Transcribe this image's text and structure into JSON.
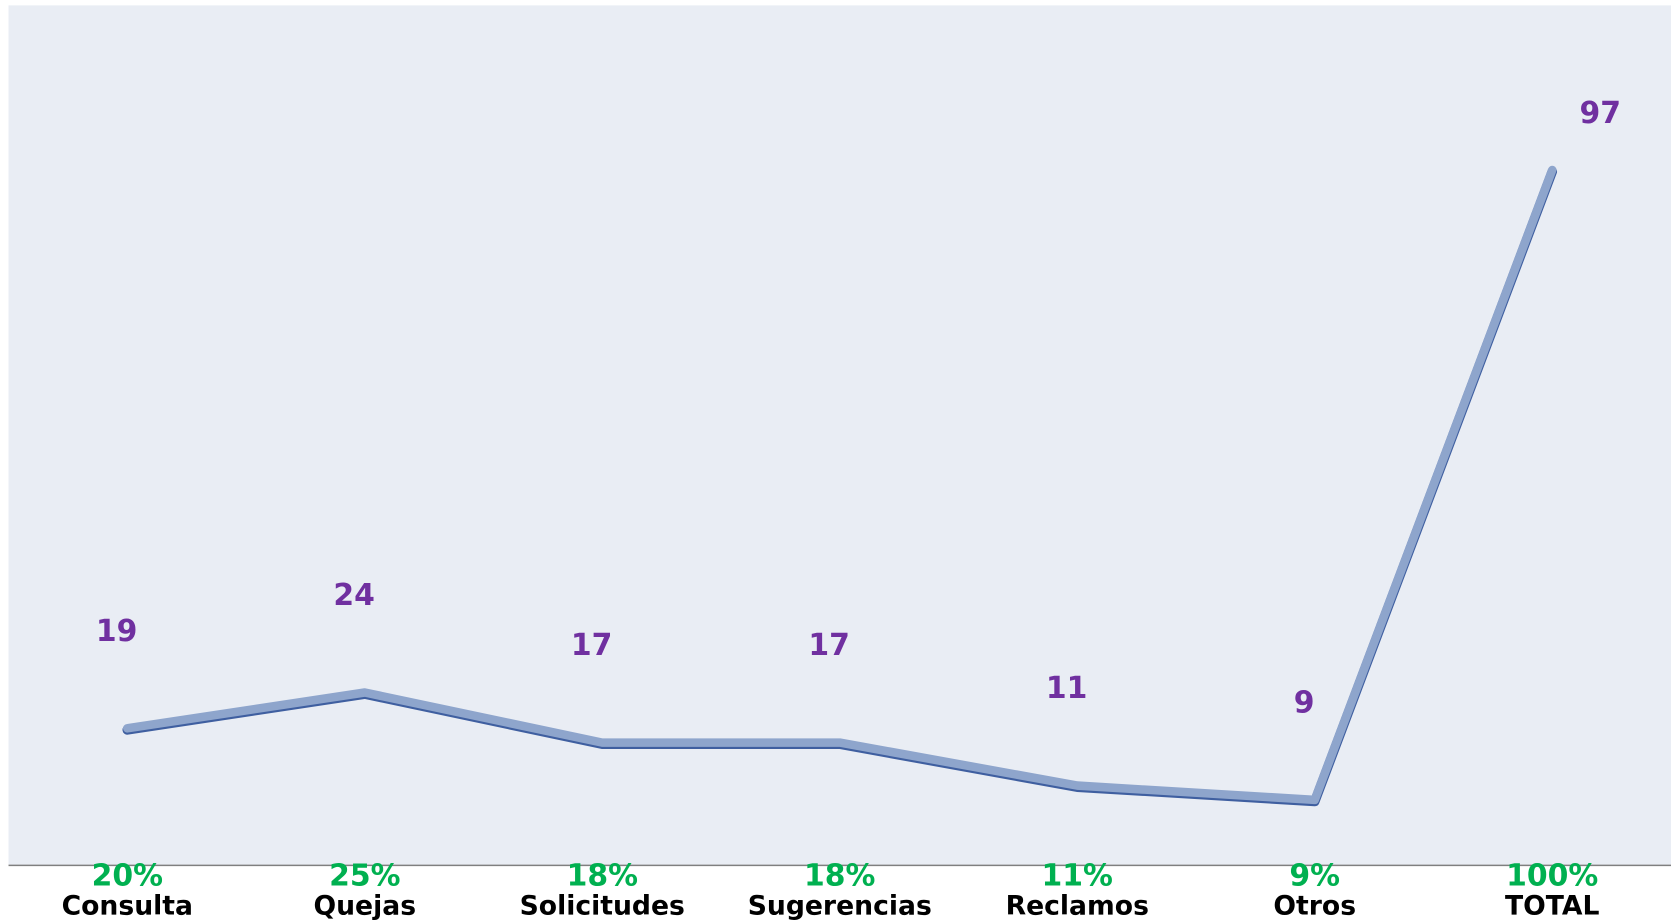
{
  "chart_data": {
    "type": "line",
    "categories": [
      "Consulta",
      "Quejas",
      "Solicitudes",
      "Sugerencias",
      "Reclamos",
      "Otros",
      "TOTAL"
    ],
    "values": [
      19,
      24,
      17,
      17,
      11,
      9,
      97
    ],
    "percent_labels": [
      "20%",
      "25%",
      "18%",
      "18%",
      "11%",
      "9%",
      "100%"
    ],
    "color": "#8ea5cc",
    "value_label_color": "#7030a0",
    "percent_label_color": "#00b050",
    "ylim": [
      0,
      120
    ]
  }
}
